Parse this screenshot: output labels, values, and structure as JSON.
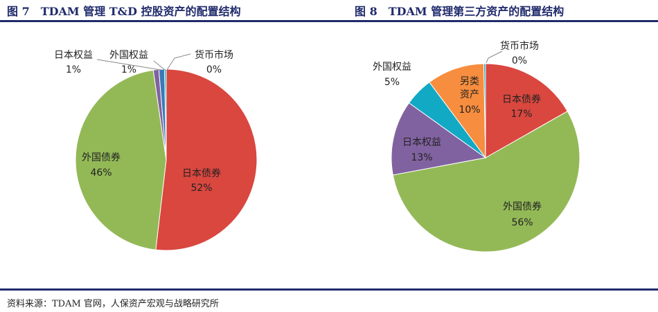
{
  "figures": {
    "left": {
      "number": "图 7",
      "title": "TDAM 管理 T&D 控股资产的配置结构"
    },
    "right": {
      "number": "图 8",
      "title": "TDAM 管理第三方资产的配置结构"
    }
  },
  "source": "资料来源：TDAM 官网，人保资产宏观与战略研究所",
  "colors": {
    "red": "#d9473f",
    "green": "#93b957",
    "purple": "#8162a0",
    "teal": "#12a9c4",
    "orange": "#f78d3e",
    "blue": "#3d78b5",
    "title": "#1f2a6b"
  },
  "chart_data": [
    {
      "type": "pie",
      "title": "TDAM 管理 T&D 控股资产的配置结构",
      "slices": [
        {
          "label": "日本债券",
          "value": 52,
          "value_text": "52%",
          "color": "#d9473f"
        },
        {
          "label": "外国债券",
          "value": 46,
          "value_text": "46%",
          "color": "#93b957"
        },
        {
          "label": "日本权益",
          "value": 1,
          "value_text": "1%",
          "color": "#8162a0"
        },
        {
          "label": "外国权益",
          "value": 1,
          "value_text": "1%",
          "color": "#3d78b5"
        },
        {
          "label": "货币市场",
          "value": 0.3,
          "value_text": "0%",
          "color": "#12a9c4"
        }
      ]
    },
    {
      "type": "pie",
      "title": "TDAM 管理第三方资产的配置结构",
      "slices": [
        {
          "label": "日本债券",
          "value": 17,
          "value_text": "17%",
          "color": "#d9473f"
        },
        {
          "label": "外国债券",
          "value": 56,
          "value_text": "56%",
          "color": "#93b957"
        },
        {
          "label": "日本权益",
          "value": 13,
          "value_text": "13%",
          "color": "#8162a0"
        },
        {
          "label": "外国权益",
          "value": 5,
          "value_text": "5%",
          "color": "#12a9c4"
        },
        {
          "label": "另类资产",
          "value": 10,
          "value_text": "10%",
          "color": "#f78d3e"
        },
        {
          "label": "货币市场",
          "value": 0.3,
          "value_text": "0%",
          "color": "#12a9c4"
        }
      ]
    }
  ]
}
